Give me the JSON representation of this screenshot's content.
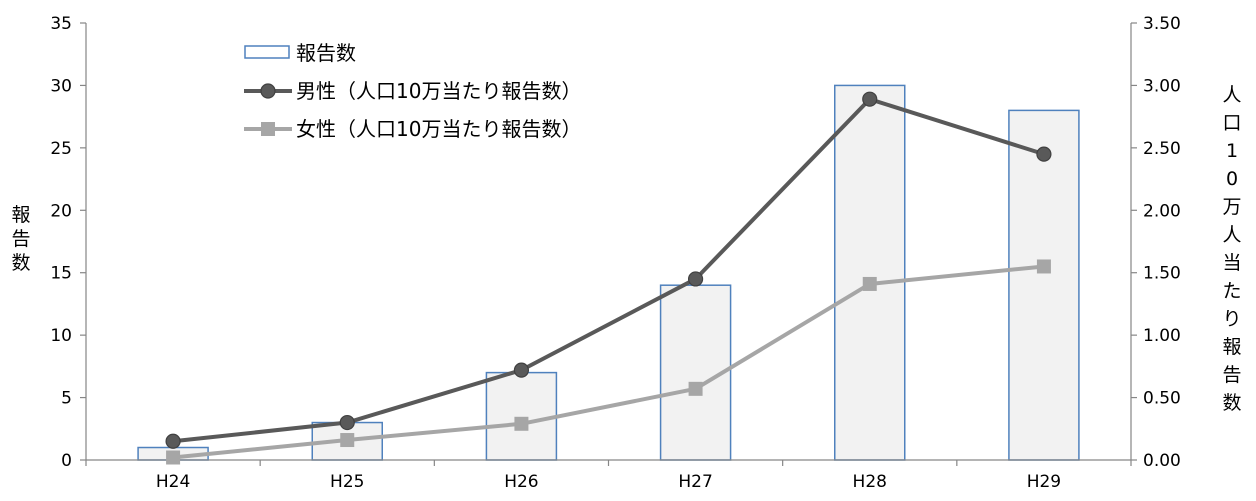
{
  "chart_data": {
    "type": "bar",
    "categories": [
      "H24",
      "H25",
      "H26",
      "H27",
      "H28",
      "H29"
    ],
    "series": [
      {
        "name": "報告数",
        "type": "bar",
        "axis": "left",
        "values": [
          1,
          3,
          7,
          14,
          30,
          28
        ],
        "fill": "#f2f2f2",
        "stroke": "#4f81bd"
      },
      {
        "name": "男性（人口10万当たり報告数）",
        "type": "line",
        "axis": "right",
        "marker": "circle",
        "values": [
          0.15,
          0.3,
          0.72,
          1.45,
          2.89,
          2.45
        ],
        "color": "#595959"
      },
      {
        "name": "女性（人口10万当たり報告数）",
        "type": "line",
        "axis": "right",
        "marker": "square",
        "values": [
          0.02,
          0.16,
          0.29,
          0.57,
          1.41,
          1.55
        ],
        "color": "#a6a6a6"
      }
    ],
    "ylabel": "報告数",
    "y2label": "人口10万人当たり報告数",
    "ylim": [
      0,
      35
    ],
    "y2lim": [
      0,
      3.5
    ],
    "yticks": [
      "0",
      "5",
      "10",
      "15",
      "20",
      "25",
      "30",
      "35"
    ],
    "y2ticks": [
      "0.00",
      "0.50",
      "1.00",
      "1.50",
      "2.00",
      "2.50",
      "3.00",
      "3.50"
    ],
    "legend_position": "top-left",
    "grid": false,
    "colors": {
      "axis": "#868686",
      "bar_fill": "#f2f2f2",
      "bar_stroke": "#4f81bd",
      "male_line": "#595959",
      "female_line": "#a6a6a6"
    }
  }
}
